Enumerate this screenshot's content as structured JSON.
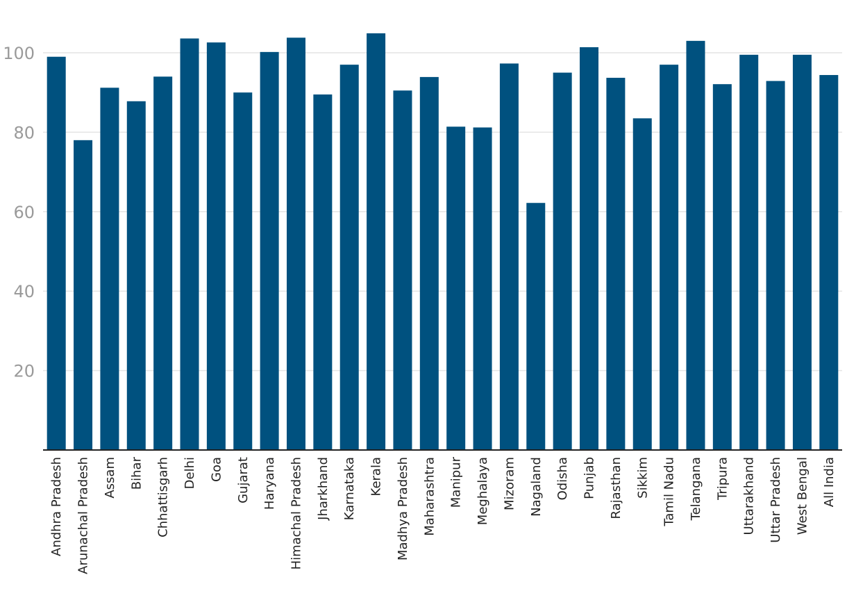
{
  "chart_data": {
    "type": "bar",
    "title": "",
    "xlabel": "",
    "ylabel": "",
    "ylim": [
      0,
      108
    ],
    "yticks": [
      20,
      40,
      60,
      80,
      100
    ],
    "grid": true,
    "bar_color": "#00517f",
    "categories": [
      "Andhra Pradesh",
      "Arunachal Pradesh",
      "Assam",
      "Bihar",
      "Chhattisgarh",
      "Delhi",
      "Goa",
      "Gujarat",
      "Haryana",
      "Himachal Pradesh",
      "Jharkhand",
      "Karnataka",
      "Kerala",
      "Madhya Pradesh",
      "Maharashtra",
      "Manipur",
      "Meghalaya",
      "Mizoram",
      "Nagaland",
      "Odisha",
      "Punjab",
      "Rajasthan",
      "Sikkim",
      "Tamil Nadu",
      "Telangana",
      "Tripura",
      "Uttarakhand",
      "Uttar Pradesh",
      "West Bengal",
      "All India"
    ],
    "values": [
      99,
      78,
      91.2,
      87.8,
      94,
      103.6,
      102.6,
      90,
      100.2,
      103.8,
      89.5,
      97,
      104.9,
      90.5,
      93.9,
      81.4,
      81.2,
      97.3,
      62.2,
      95,
      101.4,
      93.7,
      83.5,
      97,
      103,
      92.1,
      99.5,
      92.9,
      99.5,
      94.4
    ]
  }
}
